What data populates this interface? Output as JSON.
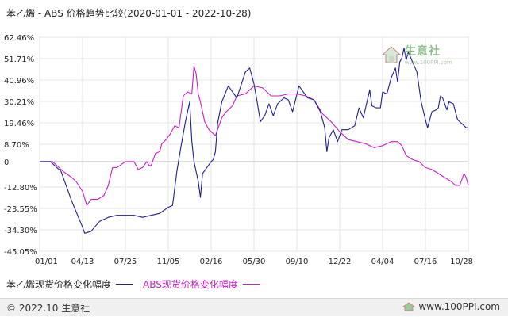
{
  "title": "苯乙烯 - ABS 价格趋势比较(2020-01-01 - 2022-10-28)",
  "watermark": {
    "brand": "生意社",
    "url": "www.100PPI.com"
  },
  "footer": {
    "left": "© 2022.10 生意社",
    "right": "www.100PPI.com"
  },
  "colors": {
    "series1": "#1f1f8f",
    "series2": "#c81fc8",
    "grid": "#e6e6e6",
    "axis": "#666666"
  },
  "chart_data": {
    "type": "line",
    "title": "苯乙烯 - ABS 价格趋势比较(2020-01-01 - 2022-10-28)",
    "xlabel": "",
    "ylabel": "",
    "x_ticks": [
      "01/01",
      "04/13",
      "07/25",
      "11/05",
      "02/16",
      "05/30",
      "09/10",
      "12/22",
      "04/04",
      "07/16",
      "10/28"
    ],
    "y_ticks": [
      "62.46%",
      "51.71%",
      "40.96%",
      "30.21%",
      "19.46%",
      "8.70%",
      "0",
      "-12.80%",
      "-23.55%",
      "-34.30%",
      "-45.05%"
    ],
    "y_tick_values": [
      62.46,
      51.71,
      40.96,
      30.21,
      19.46,
      8.7,
      0,
      -12.8,
      -23.55,
      -34.3,
      -45.05
    ],
    "ylim": [
      -45.05,
      62.46
    ],
    "xlim": [
      0,
      10
    ],
    "grid": true,
    "legend_position": "bottom",
    "series": [
      {
        "name": "苯乙烯现货价格变化幅度",
        "points": [
          [
            0,
            0
          ],
          [
            0.25,
            0
          ],
          [
            0.5,
            -5
          ],
          [
            0.75,
            -20
          ],
          [
            1.0,
            -33
          ],
          [
            1.05,
            -36
          ],
          [
            1.2,
            -35
          ],
          [
            1.4,
            -30
          ],
          [
            1.6,
            -28
          ],
          [
            1.8,
            -27
          ],
          [
            2.0,
            -27
          ],
          [
            2.2,
            -27
          ],
          [
            2.4,
            -28
          ],
          [
            2.6,
            -27
          ],
          [
            2.8,
            -26
          ],
          [
            3.0,
            -23
          ],
          [
            3.1,
            -22
          ],
          [
            3.2,
            -5
          ],
          [
            3.3,
            8
          ],
          [
            3.4,
            20
          ],
          [
            3.5,
            30
          ],
          [
            3.55,
            10
          ],
          [
            3.6,
            0
          ],
          [
            3.7,
            -10
          ],
          [
            3.75,
            -18
          ],
          [
            3.8,
            -6
          ],
          [
            3.9,
            -3
          ],
          [
            4.0,
            0
          ],
          [
            4.05,
            1
          ],
          [
            4.1,
            5
          ],
          [
            4.15,
            19
          ],
          [
            4.25,
            30
          ],
          [
            4.4,
            38
          ],
          [
            4.6,
            32
          ],
          [
            4.8,
            45
          ],
          [
            4.9,
            47
          ],
          [
            5.0,
            39
          ],
          [
            5.05,
            33
          ],
          [
            5.15,
            20
          ],
          [
            5.25,
            23
          ],
          [
            5.35,
            29
          ],
          [
            5.45,
            23
          ],
          [
            5.55,
            29
          ],
          [
            5.7,
            32
          ],
          [
            5.8,
            31
          ],
          [
            5.9,
            25
          ],
          [
            6.05,
            38
          ],
          [
            6.25,
            32
          ],
          [
            6.4,
            31
          ],
          [
            6.55,
            25
          ],
          [
            6.65,
            17
          ],
          [
            6.7,
            5
          ],
          [
            6.75,
            12
          ],
          [
            6.85,
            16
          ],
          [
            6.95,
            10
          ],
          [
            7.05,
            16
          ],
          [
            7.2,
            16
          ],
          [
            7.35,
            18
          ],
          [
            7.45,
            27
          ],
          [
            7.55,
            22
          ],
          [
            7.7,
            36
          ],
          [
            7.75,
            28
          ],
          [
            7.85,
            27
          ],
          [
            7.95,
            27
          ],
          [
            8.0,
            35
          ],
          [
            8.1,
            34
          ],
          [
            8.2,
            42
          ],
          [
            8.3,
            47
          ],
          [
            8.35,
            40
          ],
          [
            8.4,
            50
          ],
          [
            8.45,
            52
          ],
          [
            8.5,
            57
          ],
          [
            8.55,
            51
          ],
          [
            8.6,
            55
          ],
          [
            8.7,
            50
          ],
          [
            8.8,
            45
          ],
          [
            8.9,
            30
          ],
          [
            9.0,
            21
          ],
          [
            9.05,
            17
          ],
          [
            9.15,
            25
          ],
          [
            9.25,
            26
          ],
          [
            9.3,
            27
          ],
          [
            9.35,
            33
          ],
          [
            9.4,
            32
          ],
          [
            9.5,
            26
          ],
          [
            9.55,
            30
          ],
          [
            9.65,
            29
          ],
          [
            9.75,
            21
          ],
          [
            9.85,
            19
          ],
          [
            9.95,
            17
          ],
          [
            10.0,
            17
          ]
        ]
      },
      {
        "name": "ABS现货价格变化幅度",
        "points": [
          [
            0,
            0
          ],
          [
            0.3,
            0
          ],
          [
            0.55,
            -5
          ],
          [
            0.75,
            -8
          ],
          [
            0.85,
            -10
          ],
          [
            1.0,
            -15
          ],
          [
            1.1,
            -22
          ],
          [
            1.2,
            -19
          ],
          [
            1.35,
            -19
          ],
          [
            1.5,
            -17
          ],
          [
            1.6,
            -12
          ],
          [
            1.7,
            -3
          ],
          [
            1.8,
            -3
          ],
          [
            2.0,
            0
          ],
          [
            2.2,
            0
          ],
          [
            2.3,
            -4
          ],
          [
            2.4,
            -3
          ],
          [
            2.5,
            0
          ],
          [
            2.55,
            -2
          ],
          [
            2.6,
            -2
          ],
          [
            2.7,
            4
          ],
          [
            2.8,
            5
          ],
          [
            2.85,
            9
          ],
          [
            2.95,
            11
          ],
          [
            3.05,
            14
          ],
          [
            3.15,
            18
          ],
          [
            3.25,
            17
          ],
          [
            3.35,
            33
          ],
          [
            3.45,
            35
          ],
          [
            3.55,
            34
          ],
          [
            3.6,
            48
          ],
          [
            3.65,
            44
          ],
          [
            3.7,
            34
          ],
          [
            3.75,
            30
          ],
          [
            3.85,
            20
          ],
          [
            3.95,
            16
          ],
          [
            4.1,
            13
          ],
          [
            4.25,
            22
          ],
          [
            4.35,
            25
          ],
          [
            4.5,
            28
          ],
          [
            4.6,
            33
          ],
          [
            4.8,
            34
          ],
          [
            4.9,
            36
          ],
          [
            5.0,
            38
          ],
          [
            5.2,
            37
          ],
          [
            5.4,
            33
          ],
          [
            5.6,
            33
          ],
          [
            5.8,
            34
          ],
          [
            6.0,
            34
          ],
          [
            6.2,
            33
          ],
          [
            6.4,
            31
          ],
          [
            6.6,
            24
          ],
          [
            6.8,
            20
          ],
          [
            7.0,
            15
          ],
          [
            7.2,
            11
          ],
          [
            7.4,
            10
          ],
          [
            7.6,
            9
          ],
          [
            7.8,
            7
          ],
          [
            8.0,
            8
          ],
          [
            8.2,
            10
          ],
          [
            8.35,
            10
          ],
          [
            8.45,
            8
          ],
          [
            8.55,
            3
          ],
          [
            8.7,
            1
          ],
          [
            8.85,
            0
          ],
          [
            9.0,
            -3
          ],
          [
            9.15,
            -4
          ],
          [
            9.3,
            -6
          ],
          [
            9.45,
            -8
          ],
          [
            9.6,
            -10
          ],
          [
            9.7,
            -12
          ],
          [
            9.8,
            -12
          ],
          [
            9.9,
            -6
          ],
          [
            9.95,
            -8
          ],
          [
            10.0,
            -12
          ]
        ]
      }
    ]
  }
}
